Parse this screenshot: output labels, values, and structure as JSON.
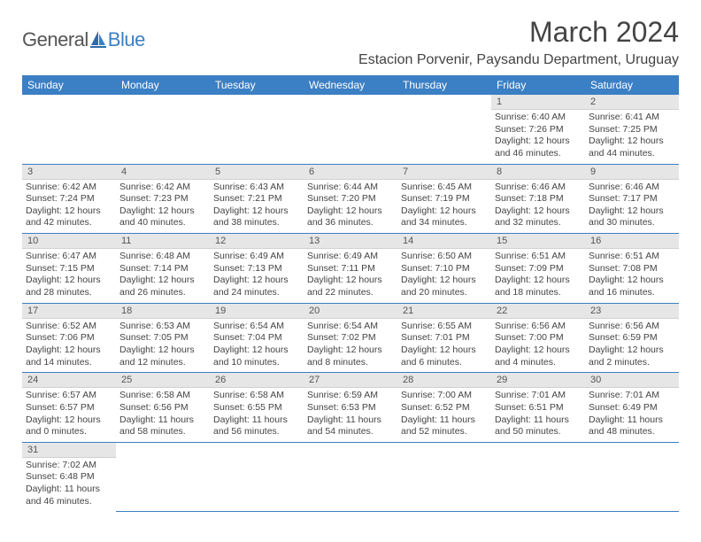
{
  "brand": {
    "part1": "General",
    "part2": "Blue"
  },
  "title": "March 2024",
  "location": "Estacion Porvenir, Paysandu Department, Uruguay",
  "weekdays": [
    "Sunday",
    "Monday",
    "Tuesday",
    "Wednesday",
    "Thursday",
    "Friday",
    "Saturday"
  ],
  "colors": {
    "header_bg": "#3b7fc4",
    "header_fg": "#ffffff",
    "daynum_bg": "#e6e6e6",
    "cell_border": "#3b7fc4",
    "brand_blue": "#3b7fc4",
    "text": "#444444"
  },
  "weeks": [
    [
      null,
      null,
      null,
      null,
      null,
      {
        "n": "1",
        "sr": "6:40 AM",
        "ss": "7:26 PM",
        "dl": "12 hours and 46 minutes."
      },
      {
        "n": "2",
        "sr": "6:41 AM",
        "ss": "7:25 PM",
        "dl": "12 hours and 44 minutes."
      }
    ],
    [
      {
        "n": "3",
        "sr": "6:42 AM",
        "ss": "7:24 PM",
        "dl": "12 hours and 42 minutes."
      },
      {
        "n": "4",
        "sr": "6:42 AM",
        "ss": "7:23 PM",
        "dl": "12 hours and 40 minutes."
      },
      {
        "n": "5",
        "sr": "6:43 AM",
        "ss": "7:21 PM",
        "dl": "12 hours and 38 minutes."
      },
      {
        "n": "6",
        "sr": "6:44 AM",
        "ss": "7:20 PM",
        "dl": "12 hours and 36 minutes."
      },
      {
        "n": "7",
        "sr": "6:45 AM",
        "ss": "7:19 PM",
        "dl": "12 hours and 34 minutes."
      },
      {
        "n": "8",
        "sr": "6:46 AM",
        "ss": "7:18 PM",
        "dl": "12 hours and 32 minutes."
      },
      {
        "n": "9",
        "sr": "6:46 AM",
        "ss": "7:17 PM",
        "dl": "12 hours and 30 minutes."
      }
    ],
    [
      {
        "n": "10",
        "sr": "6:47 AM",
        "ss": "7:15 PM",
        "dl": "12 hours and 28 minutes."
      },
      {
        "n": "11",
        "sr": "6:48 AM",
        "ss": "7:14 PM",
        "dl": "12 hours and 26 minutes."
      },
      {
        "n": "12",
        "sr": "6:49 AM",
        "ss": "7:13 PM",
        "dl": "12 hours and 24 minutes."
      },
      {
        "n": "13",
        "sr": "6:49 AM",
        "ss": "7:11 PM",
        "dl": "12 hours and 22 minutes."
      },
      {
        "n": "14",
        "sr": "6:50 AM",
        "ss": "7:10 PM",
        "dl": "12 hours and 20 minutes."
      },
      {
        "n": "15",
        "sr": "6:51 AM",
        "ss": "7:09 PM",
        "dl": "12 hours and 18 minutes."
      },
      {
        "n": "16",
        "sr": "6:51 AM",
        "ss": "7:08 PM",
        "dl": "12 hours and 16 minutes."
      }
    ],
    [
      {
        "n": "17",
        "sr": "6:52 AM",
        "ss": "7:06 PM",
        "dl": "12 hours and 14 minutes."
      },
      {
        "n": "18",
        "sr": "6:53 AM",
        "ss": "7:05 PM",
        "dl": "12 hours and 12 minutes."
      },
      {
        "n": "19",
        "sr": "6:54 AM",
        "ss": "7:04 PM",
        "dl": "12 hours and 10 minutes."
      },
      {
        "n": "20",
        "sr": "6:54 AM",
        "ss": "7:02 PM",
        "dl": "12 hours and 8 minutes."
      },
      {
        "n": "21",
        "sr": "6:55 AM",
        "ss": "7:01 PM",
        "dl": "12 hours and 6 minutes."
      },
      {
        "n": "22",
        "sr": "6:56 AM",
        "ss": "7:00 PM",
        "dl": "12 hours and 4 minutes."
      },
      {
        "n": "23",
        "sr": "6:56 AM",
        "ss": "6:59 PM",
        "dl": "12 hours and 2 minutes."
      }
    ],
    [
      {
        "n": "24",
        "sr": "6:57 AM",
        "ss": "6:57 PM",
        "dl": "12 hours and 0 minutes."
      },
      {
        "n": "25",
        "sr": "6:58 AM",
        "ss": "6:56 PM",
        "dl": "11 hours and 58 minutes."
      },
      {
        "n": "26",
        "sr": "6:58 AM",
        "ss": "6:55 PM",
        "dl": "11 hours and 56 minutes."
      },
      {
        "n": "27",
        "sr": "6:59 AM",
        "ss": "6:53 PM",
        "dl": "11 hours and 54 minutes."
      },
      {
        "n": "28",
        "sr": "7:00 AM",
        "ss": "6:52 PM",
        "dl": "11 hours and 52 minutes."
      },
      {
        "n": "29",
        "sr": "7:01 AM",
        "ss": "6:51 PM",
        "dl": "11 hours and 50 minutes."
      },
      {
        "n": "30",
        "sr": "7:01 AM",
        "ss": "6:49 PM",
        "dl": "11 hours and 48 minutes."
      }
    ],
    [
      {
        "n": "31",
        "sr": "7:02 AM",
        "ss": "6:48 PM",
        "dl": "11 hours and 46 minutes."
      },
      null,
      null,
      null,
      null,
      null,
      null
    ]
  ],
  "labels": {
    "sunrise": "Sunrise:",
    "sunset": "Sunset:",
    "daylight": "Daylight:"
  }
}
